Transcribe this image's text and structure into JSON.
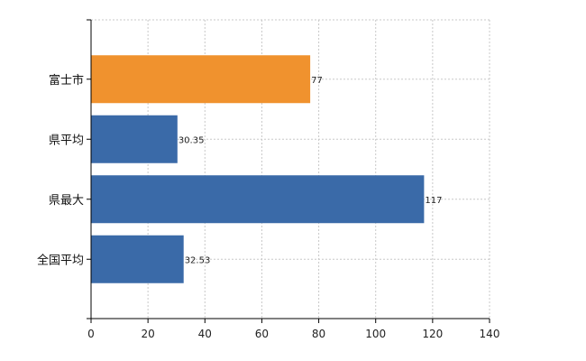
{
  "chart_data": {
    "type": "bar",
    "orientation": "horizontal",
    "title": "",
    "xlabel": "",
    "ylabel": "",
    "categories": [
      "富士市",
      "県平均",
      "県最大",
      "全国平均"
    ],
    "values": [
      77,
      30.35,
      117,
      32.53
    ],
    "value_labels": [
      "77",
      "30.35",
      "117",
      "32.53"
    ],
    "bar_colors": [
      "#f0922e",
      "#3a6aa8",
      "#3a6aa8",
      "#3a6aa8"
    ],
    "xlim": [
      0,
      140
    ],
    "xticks": [
      0,
      20,
      40,
      60,
      80,
      100,
      120,
      140
    ],
    "grid": "vertical-dashed",
    "legend": "none"
  }
}
